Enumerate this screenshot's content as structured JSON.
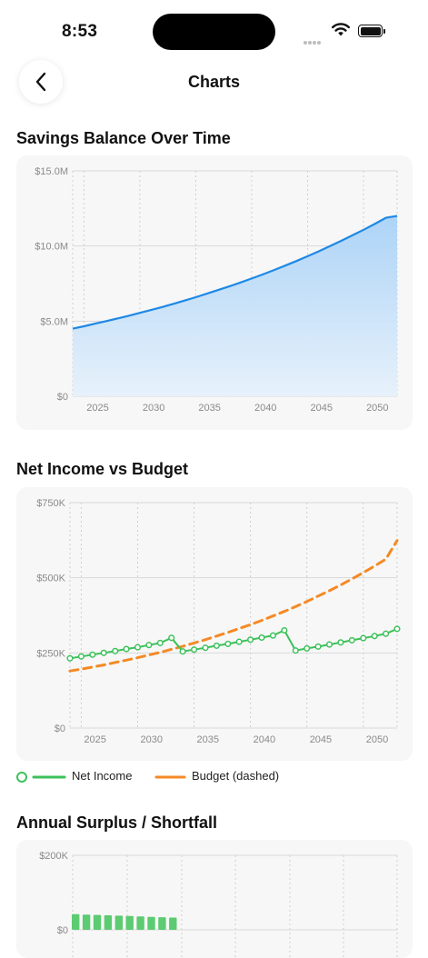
{
  "status": {
    "time": "8:53"
  },
  "nav": {
    "title": "Charts"
  },
  "charts": [
    {
      "section_title": "Savings Balance Over Time",
      "chart_data": {
        "type": "area",
        "title": "Savings Balance Over Time",
        "x": [
          2024,
          2025,
          2026,
          2027,
          2028,
          2029,
          2030,
          2031,
          2032,
          2033,
          2034,
          2035,
          2036,
          2037,
          2038,
          2039,
          2040,
          2041,
          2042,
          2043,
          2044,
          2045,
          2046,
          2047,
          2048,
          2049,
          2050,
          2051,
          2052,
          2053
        ],
        "series": [
          {
            "values": [
              4.5,
              4.66,
              4.83,
              5.0,
              5.18,
              5.36,
              5.55,
              5.74,
              5.94,
              6.15,
              6.37,
              6.59,
              6.83,
              7.07,
              7.31,
              7.57,
              7.84,
              8.11,
              8.4,
              8.7,
              9.0,
              9.32,
              9.65,
              9.99,
              10.34,
              10.71,
              11.08,
              11.47,
              11.88,
              12.0
            ],
            "color": "#1e88e5"
          }
        ],
        "ylim": [
          0,
          15
        ],
        "xlim": [
          2024,
          2053
        ],
        "yticks": [
          0,
          5,
          10,
          15
        ],
        "ytick_labels": [
          "$0",
          "$5.0M",
          "$10.0M",
          "$15.0M"
        ],
        "xticks": [
          2025,
          2030,
          2035,
          2040,
          2045,
          2050
        ],
        "xtick_labels": [
          "2025",
          "2030",
          "2035",
          "2040",
          "2045",
          "2050"
        ],
        "unit": "$M",
        "grid": true
      }
    },
    {
      "section_title": "Net Income vs Budget",
      "chart_data": {
        "type": "line",
        "title": "Net Income vs Budget",
        "x": [
          2024,
          2025,
          2026,
          2027,
          2028,
          2029,
          2030,
          2031,
          2032,
          2033,
          2034,
          2035,
          2036,
          2037,
          2038,
          2039,
          2040,
          2041,
          2042,
          2043,
          2044,
          2045,
          2046,
          2047,
          2048,
          2049,
          2050,
          2051,
          2052,
          2053
        ],
        "series": [
          {
            "name": "Net Income",
            "color": "#3cc15a",
            "markers": true,
            "values": [
              232,
              238,
              244,
              250,
              256,
              263,
              269,
              276,
              283,
              300,
              255,
              261,
              267,
              274,
              280,
              287,
              294,
              301,
              308,
              325,
              258,
              265,
              271,
              278,
              285,
              292,
              299,
              306,
              314,
              330
            ]
          },
          {
            "name": "Budget (dashed)",
            "color": "#f58a25",
            "dashed": true,
            "values": [
              190,
              196,
              203,
              210,
              218,
              226,
              234,
              243,
              252,
              262,
              272,
              283,
              294,
              306,
              318,
              331,
              344,
              358,
              373,
              388,
              404,
              421,
              439,
              457,
              476,
              496,
              517,
              539,
              562,
              624
            ]
          }
        ],
        "ylim": [
          0,
          750
        ],
        "xlim": [
          2024,
          2053
        ],
        "yticks": [
          0,
          250,
          500,
          750
        ],
        "ytick_labels": [
          "$0",
          "$250K",
          "$500K",
          "$750K"
        ],
        "xticks": [
          2025,
          2030,
          2035,
          2040,
          2045,
          2050
        ],
        "xtick_labels": [
          "2025",
          "2030",
          "2035",
          "2040",
          "2045",
          "2050"
        ],
        "unit": "$K",
        "grid": true,
        "legend": "bottom-left"
      }
    },
    {
      "section_title": "Annual Surplus / Shortfall",
      "chart_data": {
        "type": "bar",
        "title": "Annual Surplus / Shortfall",
        "x": [
          2024,
          2025,
          2026,
          2027,
          2028,
          2029,
          2030,
          2031,
          2032,
          2033
        ],
        "values": [
          42,
          41,
          40,
          39,
          38,
          37,
          36,
          35,
          34,
          33
        ],
        "color": "#5ccb72",
        "ylim": [
          0,
          200
        ],
        "yticks": [
          0,
          200
        ],
        "ytick_labels": [
          "$0",
          "$200K"
        ],
        "unit": "$K",
        "grid": true,
        "visible_portion": "top only (cropped)"
      }
    }
  ],
  "legend_items": [
    {
      "label": "Net Income",
      "color": "#3cc15a"
    },
    {
      "label": "Budget (dashed)",
      "color": "#f58a25"
    }
  ]
}
